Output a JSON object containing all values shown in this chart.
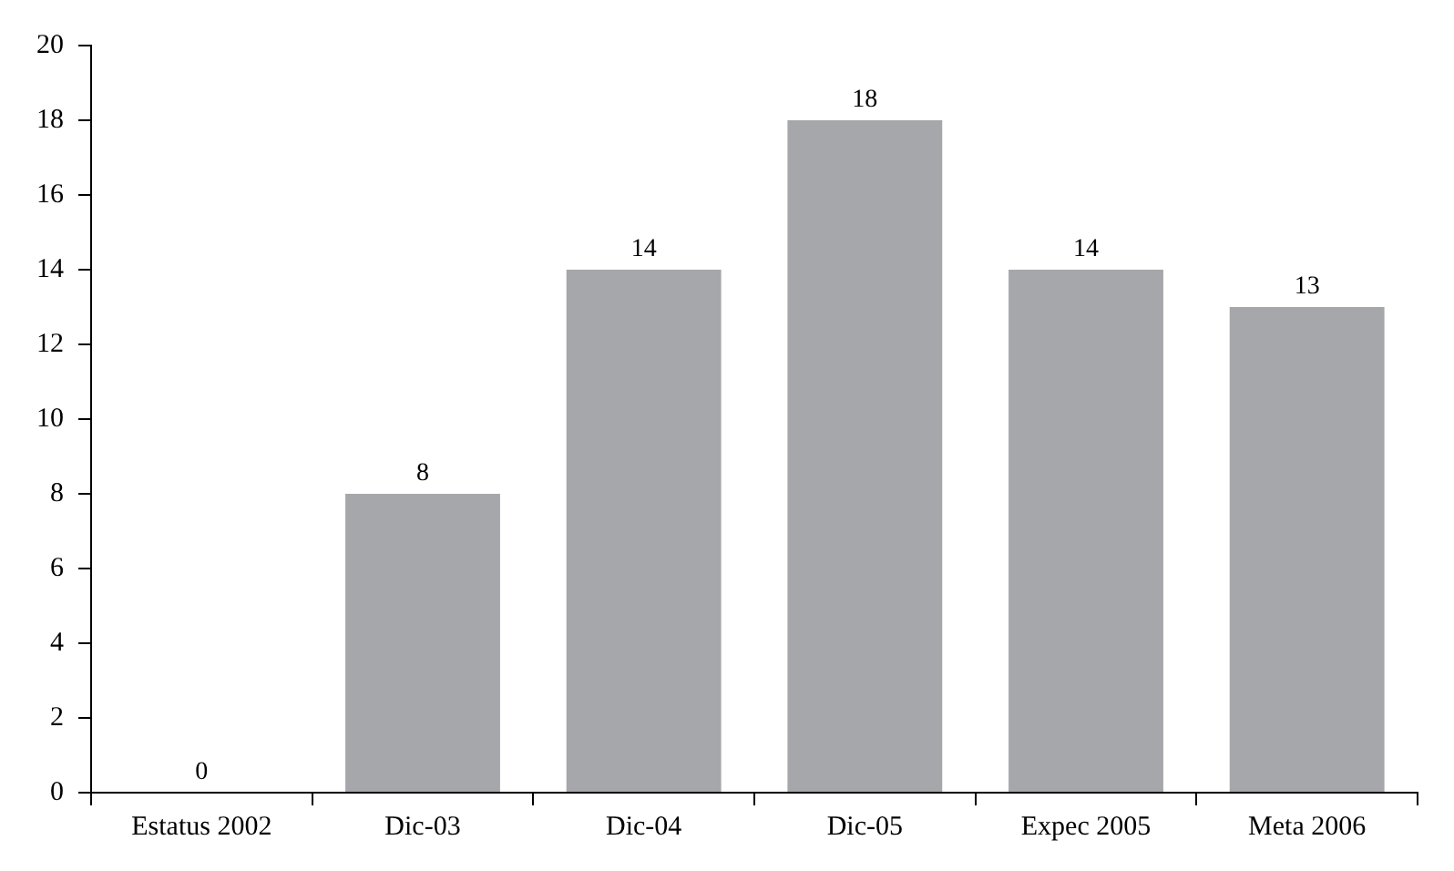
{
  "chart_data": {
    "type": "bar",
    "categories": [
      "Estatus 2002",
      "Dic-03",
      "Dic-04",
      "Dic-05",
      "Expec 2005",
      "Meta 2006"
    ],
    "values": [
      0,
      8,
      14,
      18,
      14,
      13
    ],
    "color": "#a6a7aa",
    "ylim": [
      0,
      20
    ],
    "yticks": [
      0,
      2,
      4,
      6,
      8,
      10,
      12,
      14,
      16,
      18,
      20
    ],
    "data_labels": true,
    "grid": false,
    "legend": false
  }
}
